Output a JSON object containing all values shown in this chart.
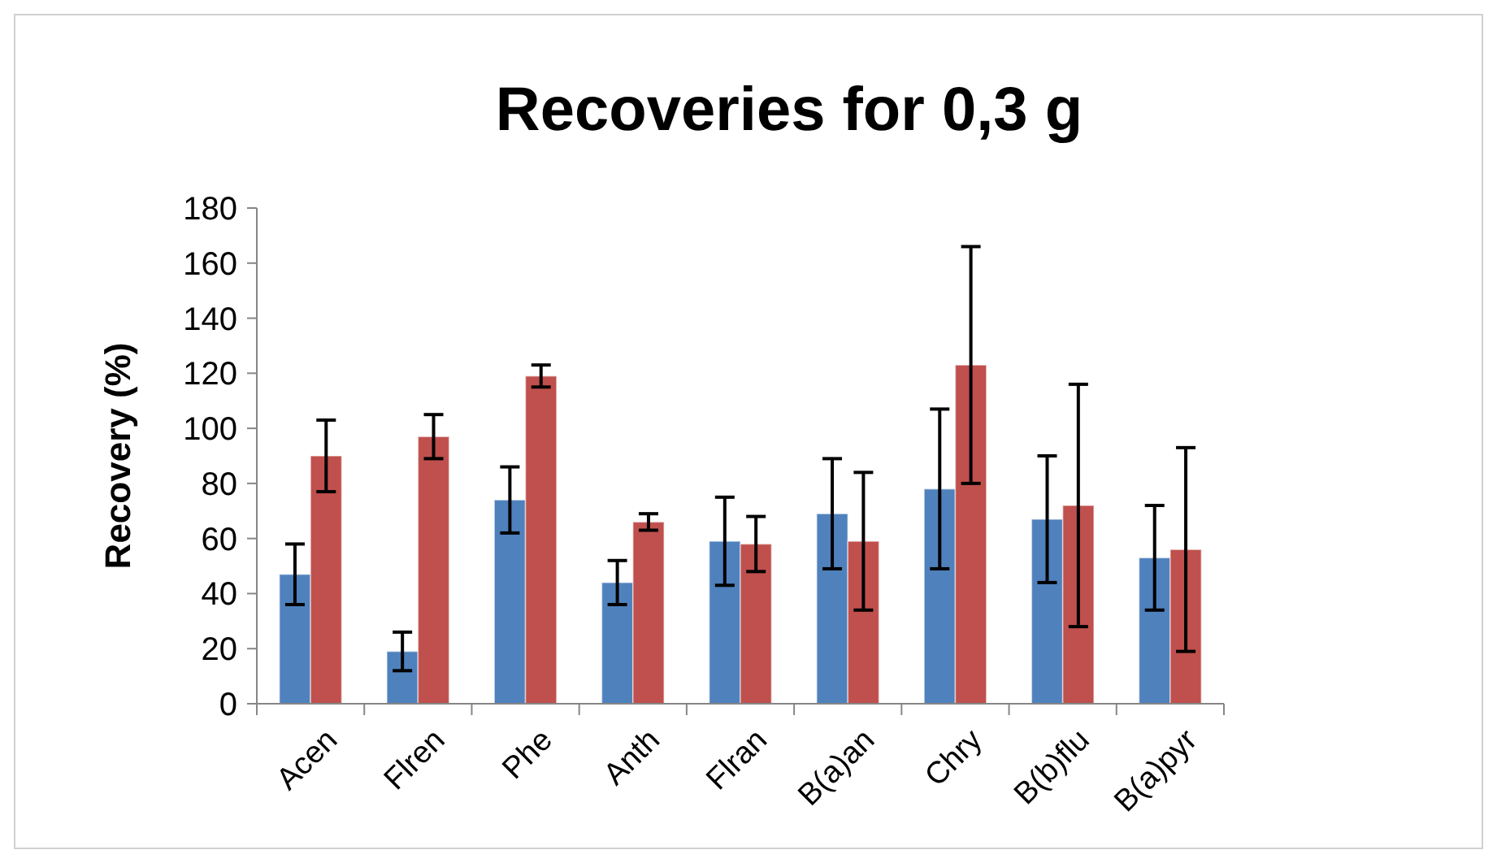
{
  "chart_data": {
    "type": "bar",
    "title": "Recoveries for 0,3 g",
    "ylabel": "Recovery (%)",
    "categories": [
      "Acen",
      "Flren",
      "Phe",
      "Anth",
      "Flran",
      "B(a)an",
      "Chry",
      "B(b)flu",
      "B(a)pyr"
    ],
    "series": [
      {
        "color": "#4f81bd",
        "values": [
          47,
          19,
          74,
          44,
          59,
          69,
          78,
          67,
          53
        ],
        "errors": [
          11,
          7,
          12,
          8,
          16,
          20,
          29,
          23,
          19
        ]
      },
      {
        "color": "#c0504d",
        "values": [
          90,
          97,
          119,
          66,
          58,
          59,
          123,
          72,
          56
        ],
        "errors": [
          13,
          8,
          4,
          3,
          10,
          25,
          43,
          44,
          37
        ]
      }
    ],
    "ylim": [
      0,
      180
    ],
    "yticks": [
      0,
      20,
      40,
      60,
      80,
      100,
      120,
      140,
      160,
      180
    ],
    "grid": false
  }
}
